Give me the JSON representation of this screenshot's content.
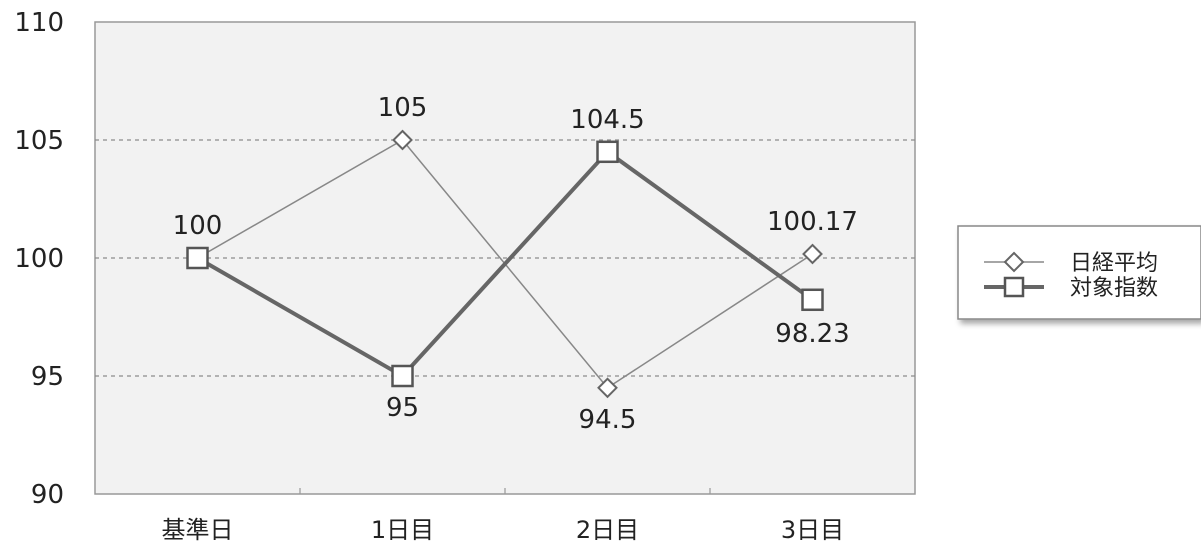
{
  "chart_data": {
    "type": "line",
    "categories": [
      "基準日",
      "1日目",
      "2日目",
      "3日目"
    ],
    "series": [
      {
        "name": "日経平均",
        "values": [
          100,
          105,
          94.5,
          100.17
        ],
        "labels": [
          "100",
          "105",
          "94.5",
          "100.17"
        ],
        "marker": "diamond",
        "color": "#777777"
      },
      {
        "name": "対象指数",
        "values": [
          100,
          95,
          104.5,
          98.23
        ],
        "labels": [
          "",
          "95",
          "104.5",
          "98.23"
        ],
        "marker": "square",
        "color": "#777777"
      }
    ],
    "ylim": [
      90,
      110
    ],
    "yticks": [
      "90",
      "95",
      "100",
      "105",
      "110"
    ],
    "title": "",
    "xlabel": "",
    "ylabel": "",
    "grid": "horizontal dashed",
    "legend": "right",
    "plot_background": "#f2f2f2"
  }
}
